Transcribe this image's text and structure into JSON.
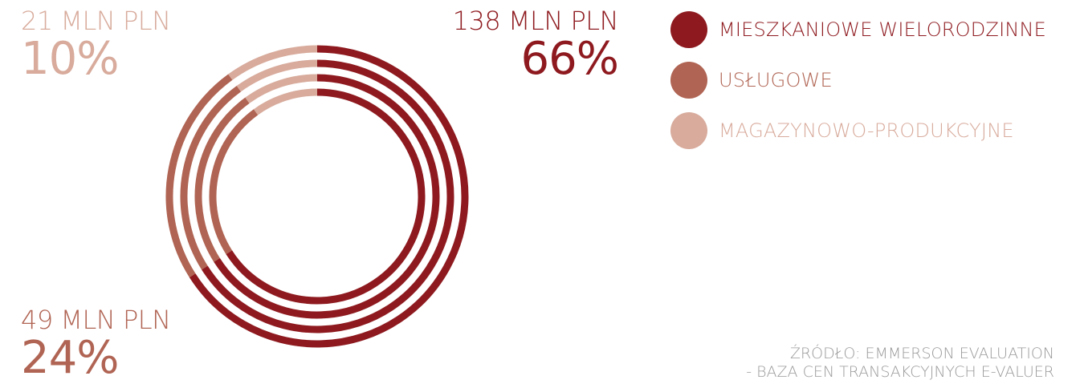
{
  "colors": {
    "mieszkaniowe": "#8e1a1f",
    "uslugowe": "#b06453",
    "magazynowe": "#d8ab9c"
  },
  "labels": {
    "magazynowe": {
      "amount": "21 MLN PLN",
      "pct": "10%"
    },
    "uslugowe": {
      "amount": "49 MLN PLN",
      "pct": "24%"
    },
    "mieszkaniowe": {
      "amount": "138 MLN PLN",
      "pct": "66%"
    }
  },
  "legend": [
    {
      "label": "MIESZKANIOWE WIELORODZINNE",
      "color": "#8e1a1f"
    },
    {
      "label": "USŁUGOWE",
      "color": "#b06453"
    },
    {
      "label": "MAGAZYNOWO-PRODUKCYJNE",
      "color": "#d8ab9c"
    }
  ],
  "source": {
    "line1": "ŹRÓDŁO: EMMERSON EVALUATION",
    "line2": "- BAZA CEN TRANSAKCYJNYCH E-VALUER"
  },
  "chart_data": {
    "type": "pie",
    "categories": [
      "MIESZKANIOWE WIELORODZINNE",
      "USŁUGOWE",
      "MAGAZYNOWO-PRODUKCYJNE"
    ],
    "values": [
      66,
      24,
      10
    ],
    "amounts_mln_pln": [
      138,
      49,
      21
    ],
    "legend_position": "right"
  }
}
